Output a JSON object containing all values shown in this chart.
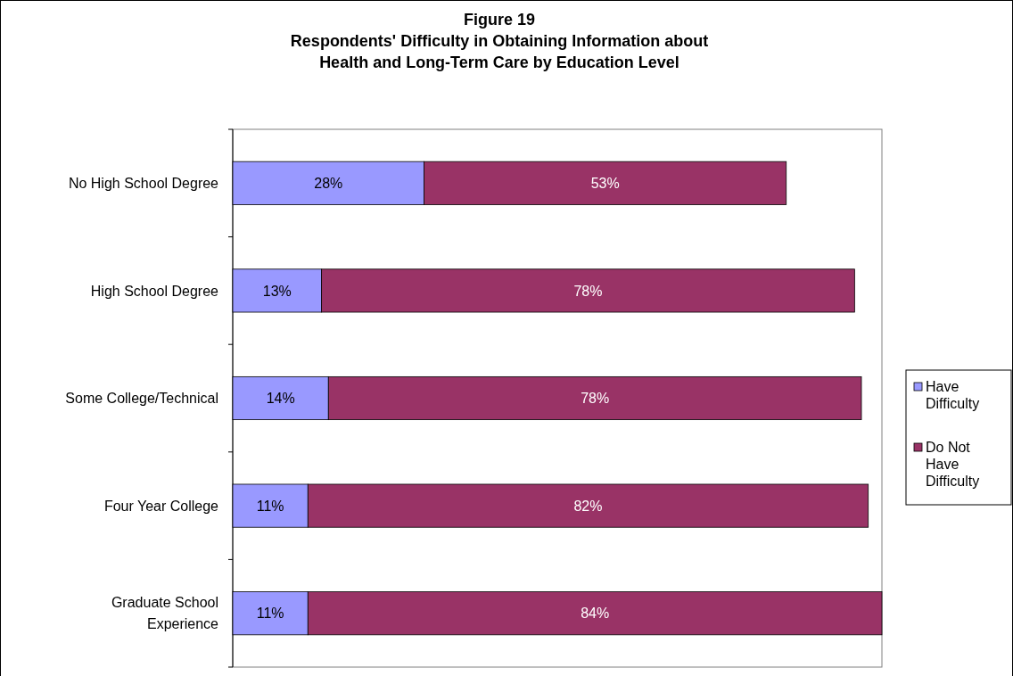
{
  "chart_data": {
    "type": "bar",
    "title": "Figure 19\nRespondents' Difficulty in Obtaining Information about\nHealth and Long-Term Care by Education Level",
    "orientation": "horizontal",
    "stacked": true,
    "legend": "right",
    "categories": [
      "No High School Degree",
      "High School Degree",
      "Some College/Technical",
      "Four Year College",
      "Graduate School Experience"
    ],
    "series": [
      {
        "name": "Have Difficulty",
        "color": "#9999ff",
        "values": [
          28,
          13,
          14,
          11,
          11
        ],
        "value_labels": [
          "28%",
          "13%",
          "14%",
          "11%",
          "11%"
        ]
      },
      {
        "name": "Do Not Have Difficulty",
        "color": "#993366",
        "values": [
          53,
          78,
          78,
          82,
          84
        ],
        "value_labels": [
          "53%",
          "78%",
          "78%",
          "82%",
          "84%"
        ]
      }
    ]
  }
}
